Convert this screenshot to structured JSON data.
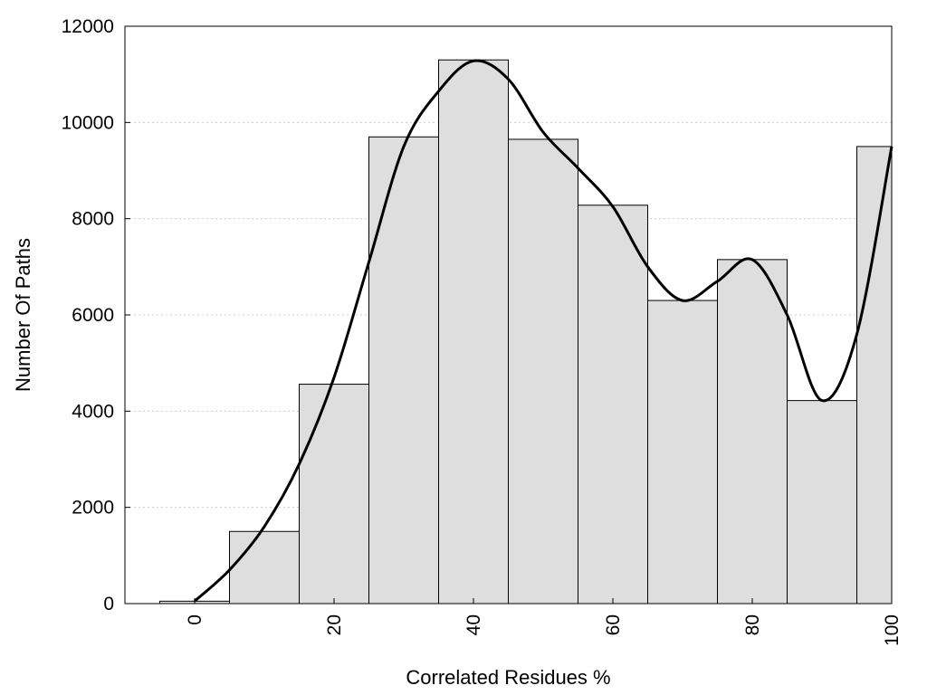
{
  "chart_data": {
    "type": "bar",
    "title": "",
    "xlabel": "Correlated Residues %",
    "ylabel": "Number Of Paths",
    "bin_width": 10,
    "x": [
      0,
      10,
      20,
      30,
      40,
      50,
      60,
      70,
      80,
      90,
      100
    ],
    "values": [
      50,
      1500,
      4560,
      9700,
      11300,
      9650,
      8280,
      6300,
      7150,
      4220,
      9500
    ],
    "xlim": [
      -10,
      100
    ],
    "ylim": [
      0,
      12000
    ],
    "x_ticks": [
      0,
      20,
      40,
      60,
      80,
      100
    ],
    "y_ticks": [
      0,
      2000,
      4000,
      6000,
      8000,
      10000,
      12000
    ],
    "grid": "horizontal dotted",
    "legend": "none",
    "curve": {
      "type": "line",
      "x": [
        0,
        5,
        10,
        15,
        20,
        25,
        30,
        35,
        40,
        45,
        50,
        55,
        60,
        65,
        70,
        75,
        80,
        85,
        90,
        95,
        100
      ],
      "y": [
        50,
        700,
        1600,
        2900,
        4700,
        7100,
        9500,
        10650,
        11280,
        10900,
        9800,
        9050,
        8250,
        7000,
        6300,
        6700,
        7150,
        6000,
        4220,
        5600,
        9500
      ]
    },
    "colors": {
      "bar_fill": "#dedede",
      "bar_stroke": "#000000",
      "curve": "#000000",
      "grid": "#cccccc"
    }
  }
}
